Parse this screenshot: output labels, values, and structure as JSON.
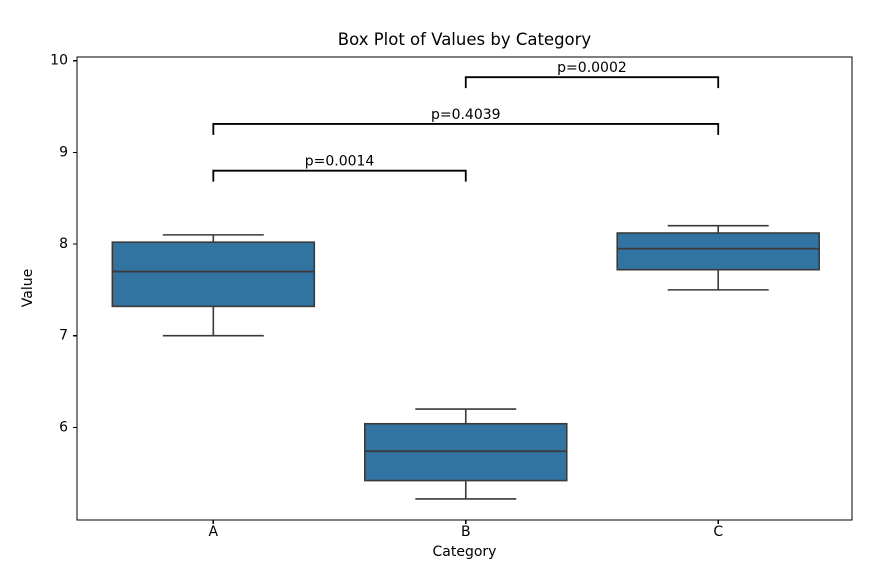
{
  "chart_data": {
    "type": "box",
    "title": "Box Plot of Values by Category",
    "xlabel": "Category",
    "ylabel": "Value",
    "categories": [
      "A",
      "B",
      "C"
    ],
    "series": [
      {
        "category": "A",
        "whislo": 7.0,
        "q1": 7.32,
        "med": 7.7,
        "q3": 8.02,
        "whishi": 8.1
      },
      {
        "category": "B",
        "whislo": 5.22,
        "q1": 5.42,
        "med": 5.74,
        "q3": 6.04,
        "whishi": 6.2
      },
      {
        "category": "C",
        "whislo": 7.5,
        "q1": 7.72,
        "med": 7.95,
        "q3": 8.12,
        "whishi": 8.2
      }
    ],
    "annotations": [
      {
        "label": "p=0.0014",
        "x1": 0,
        "x2": 1,
        "y": 8.8
      },
      {
        "label": "p=0.4039",
        "x1": 0,
        "x2": 2,
        "y": 9.31
      },
      {
        "label": "p=0.0002",
        "x1": 1,
        "x2": 2,
        "y": 9.82
      }
    ],
    "ylim": [
      4.99,
      10.04
    ],
    "xlim": [
      -0.54,
      2.53
    ],
    "yticks": [
      6,
      7,
      8,
      9,
      10
    ],
    "grid": false,
    "legend": null,
    "box_width": 0.8,
    "cap_width": 0.4,
    "colors": {
      "box_fill": "#3274a1",
      "box_edge": "#3a3a3a",
      "whisker": "#3a3a3a",
      "median": "#3a3a3a",
      "bracket": "#000000",
      "spine": "#000000",
      "text": "#000000",
      "background": "#ffffff"
    }
  }
}
